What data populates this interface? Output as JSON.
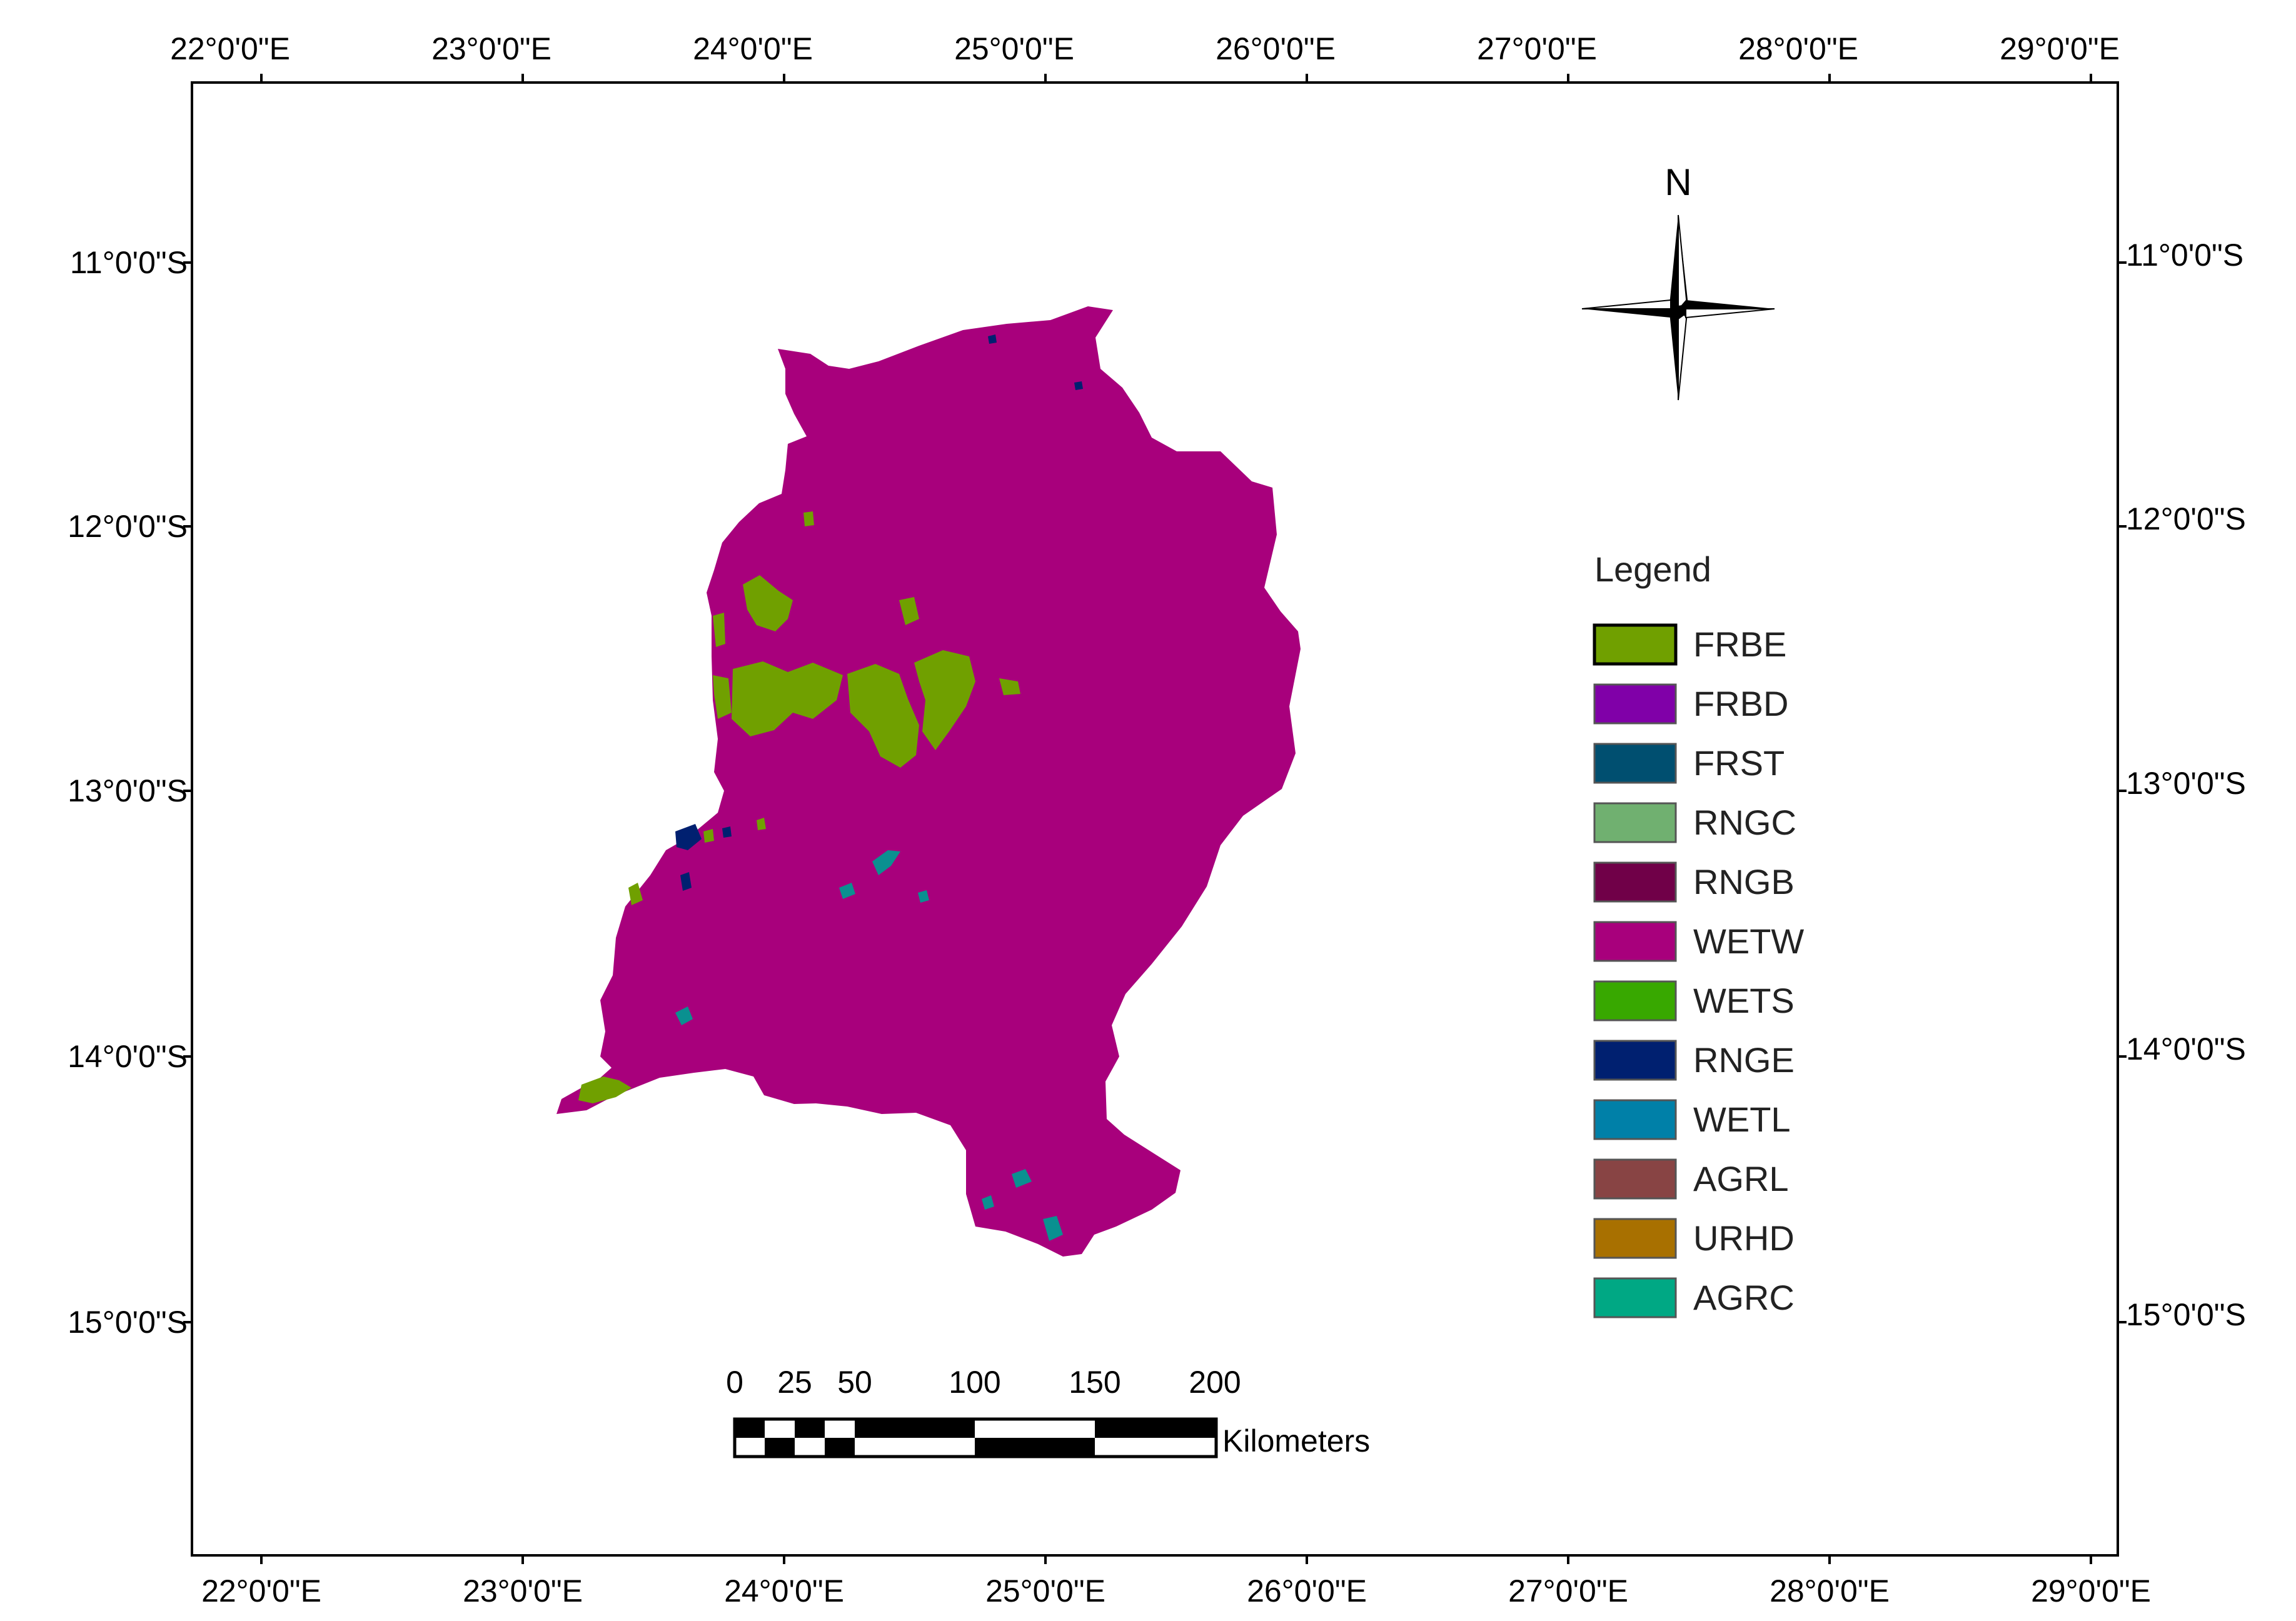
{
  "map": {
    "top_lon_labels": [
      "22°0'0\"E",
      "23°0'0\"E",
      "24°0'0\"E",
      "25°0'0\"E",
      "26°0'0\"E",
      "27°0'0\"E",
      "28°0'0\"E",
      "29°0'0\"E"
    ],
    "bottom_lon_labels": [
      "22°0'0\"E",
      "23°0'0\"E",
      "24°0'0\"E",
      "25°0'0\"E",
      "26°0'0\"E",
      "27°0'0\"E",
      "28°0'0\"E",
      "29°0'0\"E"
    ],
    "left_lat_labels": [
      "11°0'0\"S",
      "12°0'0\"S",
      "13°0'0\"S",
      "14°0'0\"S",
      "15°0'0\"S"
    ],
    "right_lat_labels": [
      "11°0'0\"S",
      "12°0'0\"S",
      "13°0'0\"S",
      "14°0'0\"S",
      "15°0'0\"S"
    ]
  },
  "north_arrow": {
    "label": "N"
  },
  "legend": {
    "title": "Legend",
    "items": [
      {
        "code": "FRBE",
        "color": "#70a000"
      },
      {
        "code": "FRBD",
        "color": "#8000a8"
      },
      {
        "code": "FRST",
        "color": "#004f70"
      },
      {
        "code": "RNGC",
        "color": "#70b070"
      },
      {
        "code": "RNGB",
        "color": "#700048"
      },
      {
        "code": "WETW",
        "color": "#a8007c"
      },
      {
        "code": "WETS",
        "color": "#38a800"
      },
      {
        "code": "RNGE",
        "color": "#002070"
      },
      {
        "code": "WETL",
        "color": "#0080a8"
      },
      {
        "code": "AGRL",
        "color": "#884444"
      },
      {
        "code": "URHD",
        "color": "#a87000"
      },
      {
        "code": "AGRC",
        "color": "#00a884"
      }
    ]
  },
  "scale_bar": {
    "labels": [
      "0",
      "25",
      "50",
      "100",
      "150",
      "200"
    ],
    "unit": "Kilometers"
  },
  "colors": {
    "basin": "#a8007c",
    "frbe_patches": "#70a000",
    "wetl_patches": "#0a9090",
    "rnge_patches": "#002070"
  }
}
